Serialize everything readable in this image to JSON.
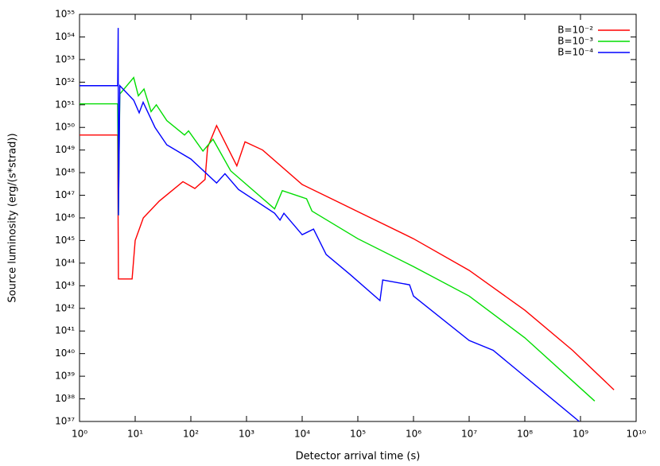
{
  "chart_data": {
    "type": "line",
    "xlabel": "Detector arrival time (s)",
    "ylabel": "Source luminosity (erg/(s*strad))",
    "xscale": "log",
    "yscale": "log",
    "xlim": [
      1,
      10000000000
    ],
    "ylim": [
      1e+37,
      1e+55
    ],
    "xticks": [
      {
        "value": 1,
        "label": "10⁰"
      },
      {
        "value": 10,
        "label": "10¹"
      },
      {
        "value": 100,
        "label": "10²"
      },
      {
        "value": 1000,
        "label": "10³"
      },
      {
        "value": 10000,
        "label": "10⁴"
      },
      {
        "value": 100000,
        "label": "10⁵"
      },
      {
        "value": 1000000,
        "label": "10⁶"
      },
      {
        "value": 10000000,
        "label": "10⁷"
      },
      {
        "value": 100000000,
        "label": "10⁸"
      },
      {
        "value": 1000000000,
        "label": "10⁹"
      },
      {
        "value": 10000000000,
        "label": "10¹⁰"
      }
    ],
    "yticks": [
      {
        "value": 1e+37,
        "label": "10³⁷"
      },
      {
        "value": 1e+38,
        "label": "10³⁸"
      },
      {
        "value": 1e+39,
        "label": "10³⁹"
      },
      {
        "value": 1e+40,
        "label": "10⁴⁰"
      },
      {
        "value": 1e+41,
        "label": "10⁴¹"
      },
      {
        "value": 1e+42,
        "label": "10⁴²"
      },
      {
        "value": 1e+43,
        "label": "10⁴³"
      },
      {
        "value": 1e+44,
        "label": "10⁴⁴"
      },
      {
        "value": 1e+45,
        "label": "10⁴⁵"
      },
      {
        "value": 1e+46,
        "label": "10⁴⁶"
      },
      {
        "value": 1e+47,
        "label": "10⁴⁷"
      },
      {
        "value": 1e+48,
        "label": "10⁴⁸"
      },
      {
        "value": 1e+49,
        "label": "10⁴⁹"
      },
      {
        "value": 1e+50,
        "label": "10⁵⁰"
      },
      {
        "value": 1e+51,
        "label": "10⁵¹"
      },
      {
        "value": 1e+52,
        "label": "10⁵²"
      },
      {
        "value": 1e+53,
        "label": "10⁵³"
      },
      {
        "value": 1e+54,
        "label": "10⁵⁴"
      },
      {
        "value": 1e+55,
        "label": "10⁵⁵"
      }
    ],
    "grid": false,
    "legend": "upper right",
    "series": [
      {
        "name": "B=10⁻²",
        "color": "#ff0000",
        "x": [
          1,
          4.85,
          5.0,
          8.8,
          10,
          14,
          27,
          72,
          118,
          180,
          200,
          290,
          670,
          940,
          1950,
          10000,
          100000,
          1000000,
          10000000,
          100000000,
          720000000,
          4000000000
        ],
        "values": [
          4.6e+49,
          4.6e+49,
          2e+43,
          2e+43,
          1e+45,
          1e+46,
          5.5e+46,
          4e+47,
          2e+47,
          5e+47,
          1.3e+49,
          1.2e+50,
          2e+48,
          2.3e+49,
          1e+49,
          3e+47,
          1.9e+46,
          1.2e+45,
          4.8e+43,
          8.3e+41,
          1.4e+40,
          2.5e+38
        ]
      },
      {
        "name": "B=10⁻³",
        "color": "#00dd00",
        "x": [
          1,
          4.85,
          5.0,
          5.3,
          9.4,
          11.4,
          14.4,
          19.3,
          24,
          37,
          77,
          91,
          165,
          250,
          520,
          3200,
          4400,
          12000,
          15000,
          100000,
          1000000,
          10000000,
          100000000,
          1800000000
        ],
        "values": [
          1.1e+51,
          1.1e+51,
          1.3e+46,
          3e+51,
          1.6e+52,
          2.5e+51,
          5e+51,
          5e+50,
          1e+51,
          2e+50,
          4.6e+49,
          7e+49,
          9e+48,
          3e+49,
          1.2e+48,
          2.5e+46,
          1.6e+47,
          7e+46,
          2e+46,
          1.2e+45,
          7e+43,
          3.5e+42,
          5e+40,
          8e+37
        ]
      },
      {
        "name": "B=10⁻⁴",
        "color": "#0000ff",
        "x": [
          1,
          4.85,
          4.95,
          5.0,
          5.3,
          9.4,
          11.8,
          13.9,
          22.7,
          37,
          100,
          290,
          410,
          720,
          3200,
          4000,
          4700,
          10000,
          16000,
          27000,
          72000,
          250000,
          280000,
          850000,
          1000000,
          10000000,
          27000000,
          950000000
        ],
        "values": [
          7e+51,
          7e+51,
          2.5e+54,
          1.3e+46,
          7e+51,
          1.6e+51,
          4.4e+50,
          1.3e+51,
          1e+50,
          1.7e+49,
          4e+48,
          3.5e+47,
          9e+47,
          1.8e+47,
          1.6e+46,
          8e+45,
          1.6e+46,
          1.8e+45,
          3.2e+45,
          2.4e+44,
          3.2e+43,
          2.2e+42,
          1.8e+43,
          1.1e+43,
          3.5e+42,
          3.8e+40,
          1.4e+40,
          1e+37
        ]
      }
    ]
  }
}
